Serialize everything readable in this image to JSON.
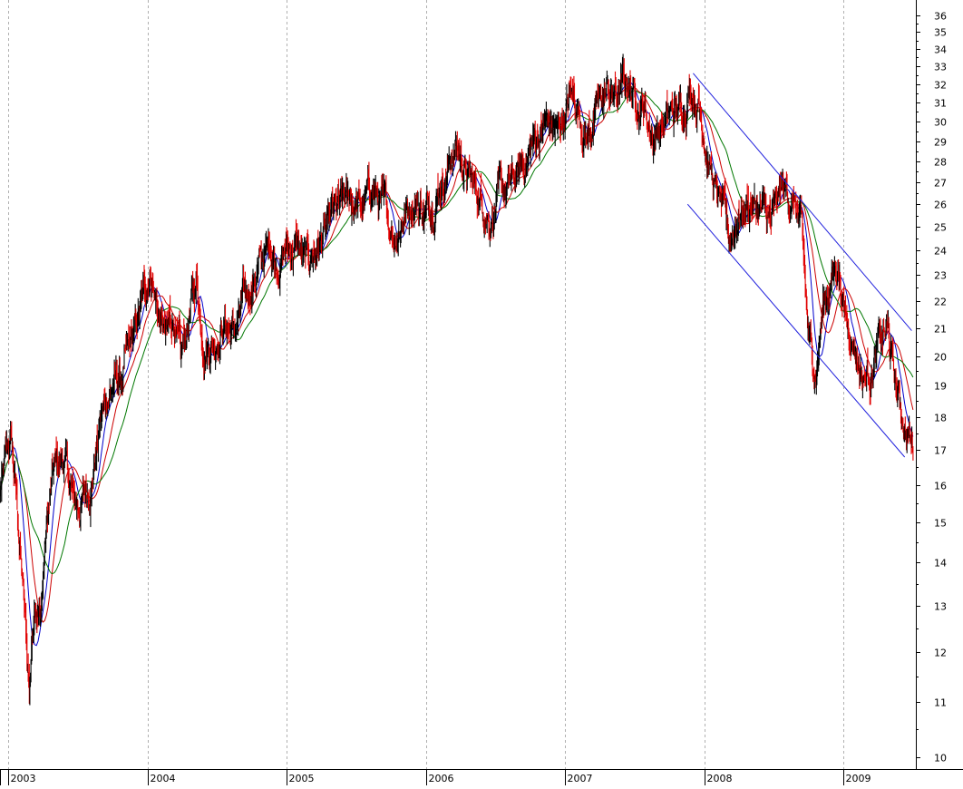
{
  "chart_data": {
    "type": "line",
    "style": "price candlesticks with moving averages and trend channel",
    "y_scale": "log",
    "ylim": [
      9.8,
      37
    ],
    "y_ticks": [
      10,
      11,
      12,
      13,
      14,
      15,
      16,
      17,
      18,
      19,
      20,
      21,
      22,
      23,
      24,
      25,
      26,
      27,
      28,
      29,
      30,
      31,
      32,
      33,
      34,
      35,
      36
    ],
    "x_range": [
      2002.94,
      2009.52
    ],
    "x_ticks": [
      "2003",
      "2004",
      "2005",
      "2006",
      "2007",
      "2008",
      "2009"
    ],
    "x_tick_values": [
      2003,
      2004,
      2005,
      2006,
      2007,
      2008,
      2009
    ],
    "grid": "vertical dashed at year boundaries",
    "price_path": [
      [
        2002.94,
        15.8
      ],
      [
        2003.02,
        17.4
      ],
      [
        2003.06,
        15.4
      ],
      [
        2003.1,
        13.6
      ],
      [
        2003.15,
        11.2
      ],
      [
        2003.19,
        13.4
      ],
      [
        2003.23,
        12.8
      ],
      [
        2003.27,
        14.8
      ],
      [
        2003.33,
        16.4
      ],
      [
        2003.4,
        16.8
      ],
      [
        2003.46,
        15.6
      ],
      [
        2003.52,
        15.4
      ],
      [
        2003.6,
        16.2
      ],
      [
        2003.66,
        17.8
      ],
      [
        2003.73,
        19.0
      ],
      [
        2003.82,
        19.2
      ],
      [
        2003.9,
        20.6
      ],
      [
        2003.96,
        21.8
      ],
      [
        2004.02,
        23.4
      ],
      [
        2004.07,
        21.8
      ],
      [
        2004.13,
        20.6
      ],
      [
        2004.19,
        21.4
      ],
      [
        2004.24,
        19.6
      ],
      [
        2004.3,
        21.4
      ],
      [
        2004.35,
        22.8
      ],
      [
        2004.41,
        20.4
      ],
      [
        2004.47,
        20.6
      ],
      [
        2004.54,
        21.2
      ],
      [
        2004.62,
        20.8
      ],
      [
        2004.7,
        22.0
      ],
      [
        2004.8,
        23.4
      ],
      [
        2004.88,
        24.2
      ],
      [
        2004.93,
        23.6
      ],
      [
        2005.0,
        24.0
      ],
      [
        2005.07,
        24.2
      ],
      [
        2005.13,
        23.4
      ],
      [
        2005.2,
        24.0
      ],
      [
        2005.27,
        24.6
      ],
      [
        2005.34,
        25.4
      ],
      [
        2005.41,
        25.9
      ],
      [
        2005.48,
        26.2
      ],
      [
        2005.54,
        25.7
      ],
      [
        2005.62,
        26.8
      ],
      [
        2005.7,
        25.6
      ],
      [
        2005.77,
        24.8
      ],
      [
        2005.84,
        25.6
      ],
      [
        2005.92,
        26.4
      ],
      [
        2006.0,
        25.6
      ],
      [
        2006.07,
        26.6
      ],
      [
        2006.14,
        27.6
      ],
      [
        2006.22,
        28.8
      ],
      [
        2006.3,
        27.2
      ],
      [
        2006.38,
        26.4
      ],
      [
        2006.46,
        25.6
      ],
      [
        2006.54,
        26.4
      ],
      [
        2006.62,
        26.8
      ],
      [
        2006.7,
        27.8
      ],
      [
        2006.78,
        29.0
      ],
      [
        2006.86,
        30.0
      ],
      [
        2006.95,
        29.4
      ],
      [
        2007.04,
        31.2
      ],
      [
        2007.09,
        30.8
      ],
      [
        2007.16,
        29.2
      ],
      [
        2007.24,
        30.8
      ],
      [
        2007.3,
        31.6
      ],
      [
        2007.37,
        31.2
      ],
      [
        2007.44,
        32.2
      ],
      [
        2007.5,
        31.4
      ],
      [
        2007.56,
        31.0
      ],
      [
        2007.62,
        29.4
      ],
      [
        2007.7,
        29.8
      ],
      [
        2007.78,
        30.4
      ],
      [
        2007.84,
        30.6
      ],
      [
        2007.9,
        32.0
      ],
      [
        2007.96,
        31.0
      ],
      [
        2008.02,
        28.8
      ],
      [
        2008.06,
        27.0
      ],
      [
        2008.12,
        25.8
      ],
      [
        2008.18,
        24.4
      ],
      [
        2008.24,
        25.6
      ],
      [
        2008.32,
        26.0
      ],
      [
        2008.4,
        25.8
      ],
      [
        2008.48,
        25.0
      ],
      [
        2008.56,
        26.6
      ],
      [
        2008.64,
        26.2
      ],
      [
        2008.7,
        24.6
      ],
      [
        2008.75,
        20.4
      ],
      [
        2008.8,
        19.6
      ],
      [
        2008.85,
        21.8
      ],
      [
        2008.9,
        22.6
      ],
      [
        2008.96,
        23.6
      ],
      [
        2009.02,
        21.2
      ],
      [
        2009.08,
        20.6
      ],
      [
        2009.14,
        19.2
      ],
      [
        2009.2,
        19.6
      ],
      [
        2009.26,
        20.4
      ],
      [
        2009.32,
        20.8
      ],
      [
        2009.38,
        18.8
      ],
      [
        2009.44,
        17.8
      ],
      [
        2009.5,
        17.0
      ]
    ],
    "series": [
      {
        "kind": "price",
        "color": "#000000",
        "down_color": "#e00000"
      },
      {
        "kind": "moving_average_short",
        "color": "#0000cc",
        "period": 4
      },
      {
        "kind": "moving_average_medium",
        "color": "#cc0000",
        "period": 8
      },
      {
        "kind": "moving_average_long",
        "color": "#007700",
        "period": 14
      }
    ],
    "channel": {
      "color": "#2222dd",
      "upper": [
        [
          2007.92,
          32.6
        ],
        [
          2009.49,
          20.9
        ]
      ],
      "lower": [
        [
          2007.88,
          26.0
        ],
        [
          2009.44,
          16.8
        ]
      ]
    }
  }
}
